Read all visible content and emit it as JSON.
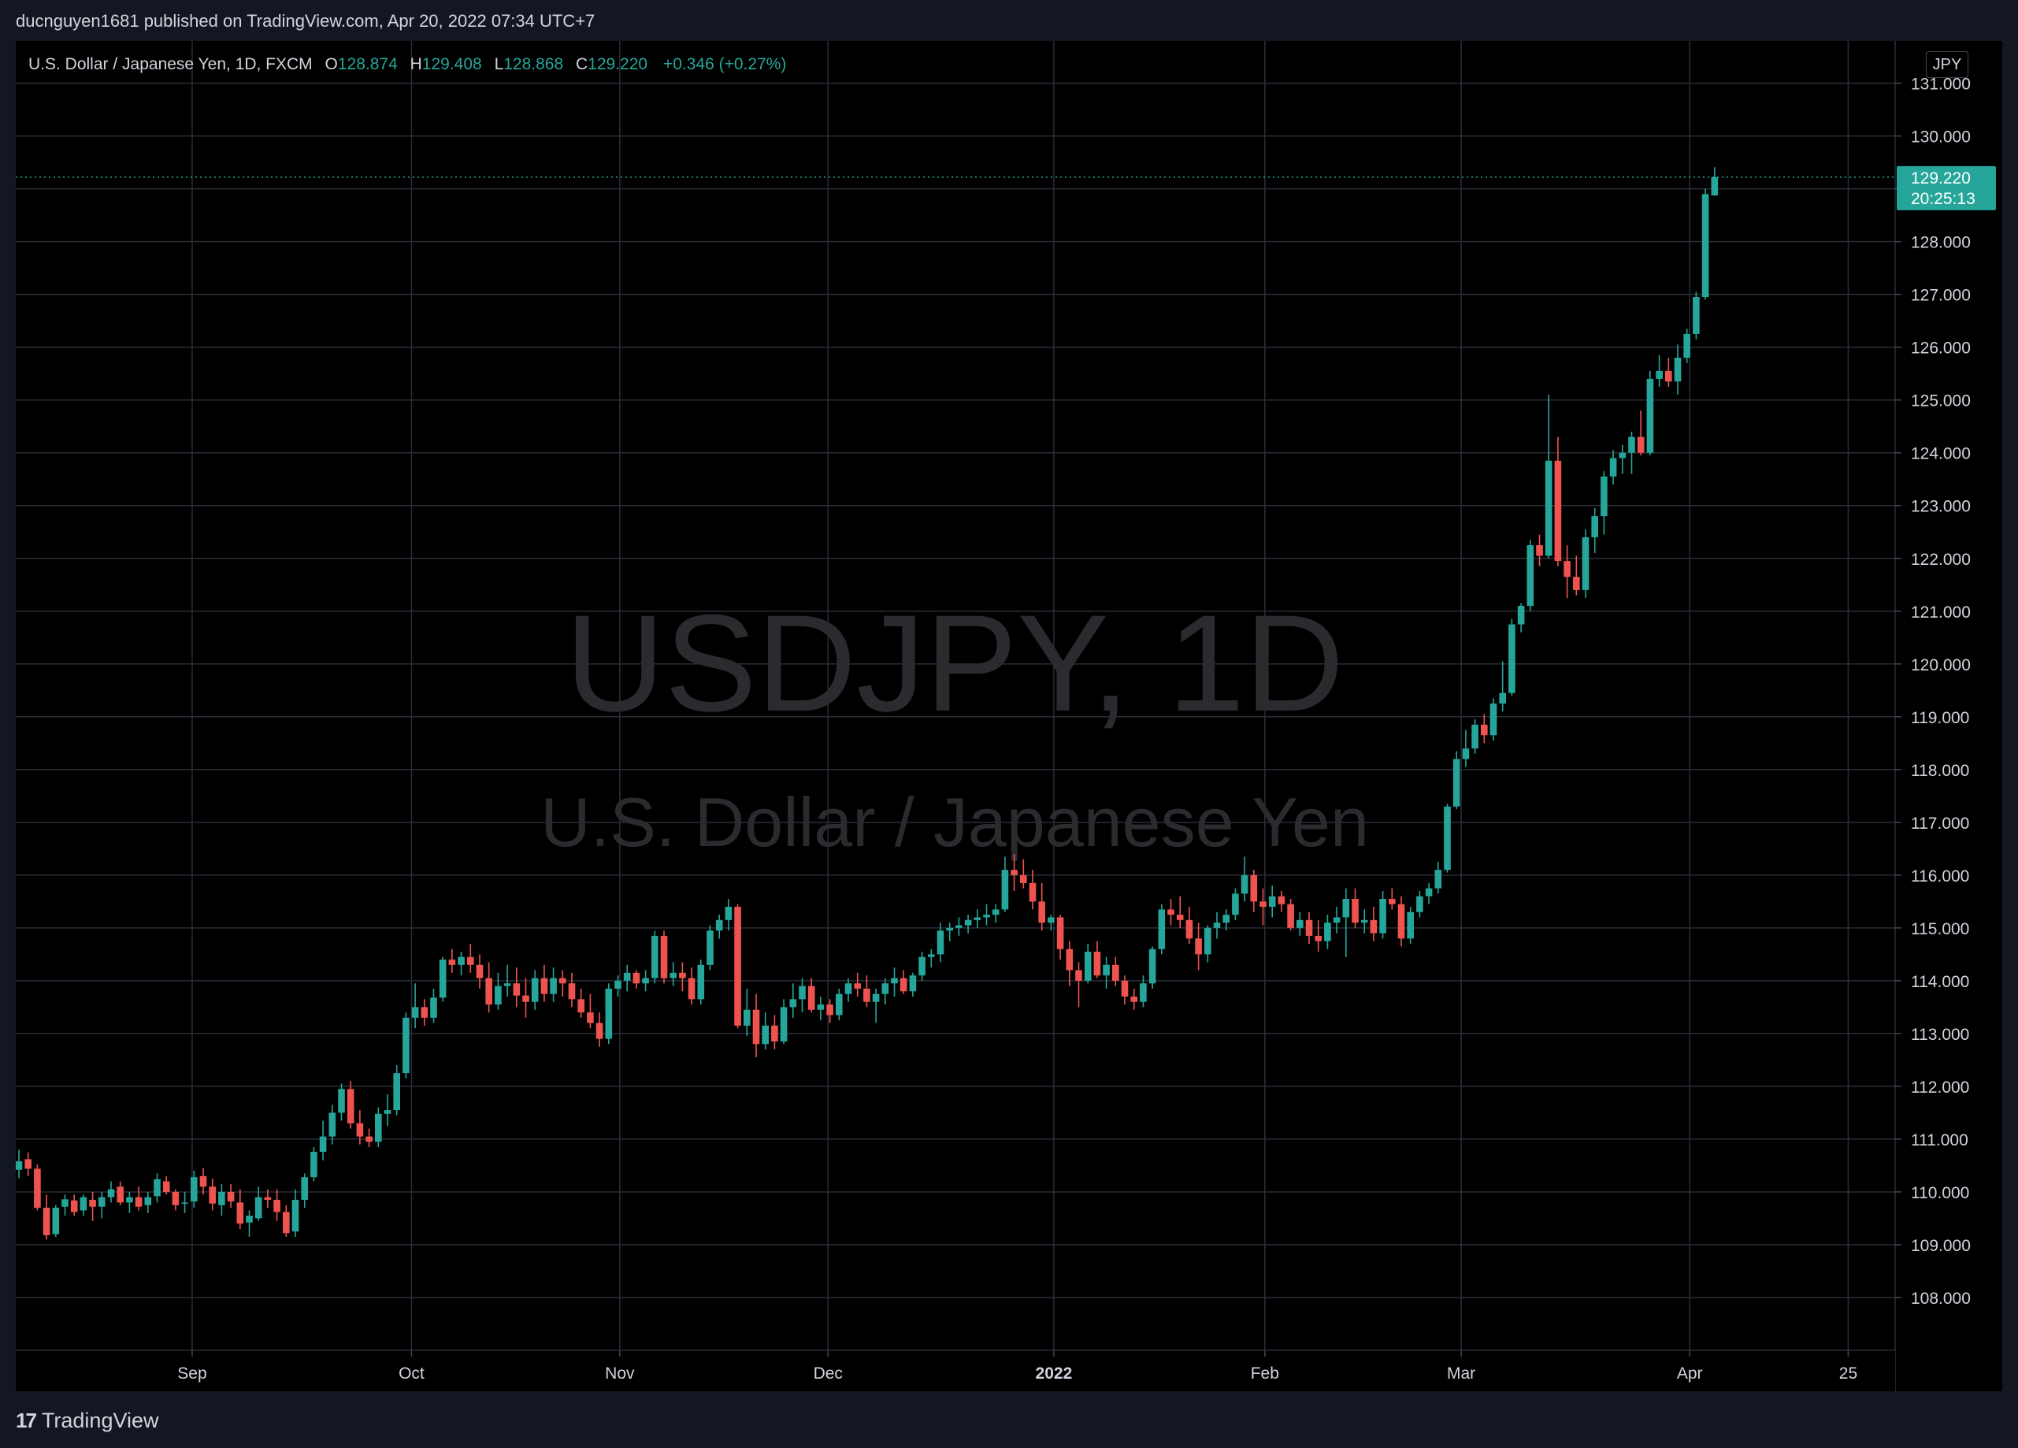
{
  "header": {
    "published_text": "ducnguyen1681 published on TradingView.com, Apr 20, 2022 07:34 UTC+7"
  },
  "legend": {
    "symbol_desc": "U.S. Dollar / Japanese Yen, 1D, FXCM",
    "o_label": "O",
    "o_value": "128.874",
    "h_label": "H",
    "h_value": "129.408",
    "l_label": "L",
    "l_value": "128.868",
    "c_label": "C",
    "c_value": "129.220",
    "change": "+0.346 (+0.27%)"
  },
  "currency_button": "JPY",
  "watermark": {
    "title": "USDJPY, 1D",
    "subtitle": "U.S. Dollar / Japanese Yen"
  },
  "price_label": {
    "price": "129.220",
    "countdown": "20:25:13"
  },
  "footer": {
    "brand": "TradingView"
  },
  "colors": {
    "up": "#26a69a",
    "down": "#ef5350",
    "grid": "#2a2e39",
    "background": "#000000",
    "axis_text": "#d1d4dc"
  },
  "chart_data": {
    "type": "candlestick",
    "symbol": "USDJPY",
    "interval": "1D",
    "ylim": [
      107.0,
      131.8
    ],
    "y_ticks": [
      "108.000",
      "109.000",
      "110.000",
      "111.000",
      "112.000",
      "113.000",
      "114.000",
      "115.000",
      "116.000",
      "117.000",
      "118.000",
      "119.000",
      "120.000",
      "121.000",
      "122.000",
      "123.000",
      "124.000",
      "125.000",
      "126.000",
      "127.000",
      "128.000",
      "129.000",
      "130.000",
      "131.000"
    ],
    "x_labels": [
      {
        "label": "Sep",
        "index": 18.8
      },
      {
        "label": "Oct",
        "index": 42.6
      },
      {
        "label": "Nov",
        "index": 65.2
      },
      {
        "label": "Dec",
        "index": 87.8
      },
      {
        "label": "2022",
        "index": 112.3,
        "bold": true
      },
      {
        "label": "Feb",
        "index": 135.2
      },
      {
        "label": "Mar",
        "index": 156.5
      },
      {
        "label": "Apr",
        "index": 181.3
      },
      {
        "label": "25",
        "index": 198.5
      }
    ],
    "last_close": 129.22,
    "ohlc": [
      [
        110.42,
        110.8,
        110.26,
        110.58
      ],
      [
        110.62,
        110.75,
        110.3,
        110.44
      ],
      [
        110.44,
        110.52,
        109.65,
        109.7
      ],
      [
        109.7,
        109.95,
        109.1,
        109.18
      ],
      [
        109.2,
        109.75,
        109.15,
        109.7
      ],
      [
        109.72,
        109.95,
        109.55,
        109.86
      ],
      [
        109.84,
        109.95,
        109.55,
        109.62
      ],
      [
        109.65,
        109.95,
        109.55,
        109.9
      ],
      [
        109.85,
        110.0,
        109.45,
        109.72
      ],
      [
        109.72,
        110.0,
        109.5,
        109.9
      ],
      [
        109.9,
        110.2,
        109.8,
        110.05
      ],
      [
        110.1,
        110.2,
        109.75,
        109.8
      ],
      [
        109.8,
        110.0,
        109.6,
        109.9
      ],
      [
        109.9,
        110.1,
        109.65,
        109.72
      ],
      [
        109.75,
        110.0,
        109.6,
        109.9
      ],
      [
        109.92,
        110.35,
        109.8,
        110.24
      ],
      [
        110.2,
        110.3,
        109.95,
        110.0
      ],
      [
        110.0,
        110.05,
        109.65,
        109.75
      ],
      [
        109.78,
        110.0,
        109.6,
        109.8
      ],
      [
        109.82,
        110.4,
        109.7,
        110.28
      ],
      [
        110.3,
        110.45,
        109.95,
        110.1
      ],
      [
        110.1,
        110.25,
        109.65,
        109.78
      ],
      [
        109.75,
        110.15,
        109.55,
        110.0
      ],
      [
        110.0,
        110.15,
        109.7,
        109.82
      ],
      [
        109.8,
        110.05,
        109.3,
        109.4
      ],
      [
        109.42,
        109.65,
        109.15,
        109.55
      ],
      [
        109.5,
        110.1,
        109.45,
        109.9
      ],
      [
        109.9,
        110.05,
        109.7,
        109.85
      ],
      [
        109.85,
        110.05,
        109.45,
        109.62
      ],
      [
        109.62,
        109.75,
        109.15,
        109.22
      ],
      [
        109.25,
        110.05,
        109.15,
        109.85
      ],
      [
        109.85,
        110.35,
        109.7,
        110.28
      ],
      [
        110.28,
        110.85,
        110.2,
        110.76
      ],
      [
        110.76,
        111.35,
        110.6,
        111.05
      ],
      [
        111.05,
        111.65,
        110.9,
        111.5
      ],
      [
        111.5,
        112.05,
        111.35,
        111.95
      ],
      [
        111.95,
        112.1,
        111.2,
        111.3
      ],
      [
        111.3,
        111.55,
        110.9,
        111.05
      ],
      [
        111.05,
        111.2,
        110.85,
        110.95
      ],
      [
        110.95,
        111.6,
        110.85,
        111.48
      ],
      [
        111.48,
        111.85,
        111.25,
        111.55
      ],
      [
        111.55,
        112.4,
        111.45,
        112.25
      ],
      [
        112.25,
        113.4,
        112.15,
        113.3
      ],
      [
        113.3,
        113.95,
        113.1,
        113.5
      ],
      [
        113.5,
        113.65,
        113.15,
        113.3
      ],
      [
        113.3,
        113.85,
        113.2,
        113.68
      ],
      [
        113.68,
        114.45,
        113.6,
        114.4
      ],
      [
        114.4,
        114.6,
        114.15,
        114.3
      ],
      [
        114.3,
        114.55,
        114.1,
        114.45
      ],
      [
        114.45,
        114.7,
        114.15,
        114.3
      ],
      [
        114.3,
        114.5,
        113.85,
        114.05
      ],
      [
        114.05,
        114.35,
        113.4,
        113.55
      ],
      [
        113.55,
        114.15,
        113.45,
        113.9
      ],
      [
        113.9,
        114.3,
        113.7,
        113.95
      ],
      [
        113.95,
        114.25,
        113.5,
        113.72
      ],
      [
        113.72,
        114.05,
        113.3,
        113.6
      ],
      [
        113.6,
        114.2,
        113.45,
        114.05
      ],
      [
        114.05,
        114.3,
        113.6,
        113.75
      ],
      [
        113.75,
        114.25,
        113.6,
        114.05
      ],
      [
        114.05,
        114.2,
        113.7,
        113.95
      ],
      [
        113.95,
        114.15,
        113.5,
        113.65
      ],
      [
        113.65,
        113.85,
        113.3,
        113.4
      ],
      [
        113.4,
        113.75,
        113.1,
        113.2
      ],
      [
        113.2,
        113.4,
        112.75,
        112.9
      ],
      [
        112.9,
        113.95,
        112.8,
        113.85
      ],
      [
        113.85,
        114.1,
        113.7,
        114.0
      ],
      [
        114.0,
        114.3,
        113.8,
        114.15
      ],
      [
        114.15,
        114.2,
        113.85,
        113.95
      ],
      [
        113.95,
        114.2,
        113.8,
        114.05
      ],
      [
        114.05,
        114.95,
        113.95,
        114.85
      ],
      [
        114.85,
        114.95,
        113.95,
        114.05
      ],
      [
        114.05,
        114.35,
        113.9,
        114.15
      ],
      [
        114.15,
        114.35,
        113.8,
        114.05
      ],
      [
        114.05,
        114.25,
        113.55,
        113.65
      ],
      [
        113.65,
        114.4,
        113.55,
        114.3
      ],
      [
        114.3,
        115.05,
        114.2,
        114.95
      ],
      [
        114.95,
        115.25,
        114.8,
        115.15
      ],
      [
        115.15,
        115.55,
        114.95,
        115.4
      ],
      [
        115.4,
        115.45,
        113.1,
        113.15
      ],
      [
        113.15,
        113.85,
        112.95,
        113.45
      ],
      [
        113.45,
        113.75,
        112.55,
        112.8
      ],
      [
        112.8,
        113.4,
        112.7,
        113.15
      ],
      [
        113.15,
        113.35,
        112.7,
        112.85
      ],
      [
        112.85,
        113.65,
        112.8,
        113.5
      ],
      [
        113.5,
        113.95,
        113.3,
        113.65
      ],
      [
        113.65,
        114.05,
        113.4,
        113.9
      ],
      [
        113.9,
        114.05,
        113.4,
        113.45
      ],
      [
        113.45,
        113.7,
        113.25,
        113.55
      ],
      [
        113.55,
        113.65,
        113.2,
        113.35
      ],
      [
        113.35,
        113.85,
        113.25,
        113.75
      ],
      [
        113.75,
        114.05,
        113.6,
        113.95
      ],
      [
        113.95,
        114.15,
        113.7,
        113.85
      ],
      [
        113.85,
        114.1,
        113.5,
        113.6
      ],
      [
        113.6,
        113.85,
        113.2,
        113.75
      ],
      [
        113.75,
        114.05,
        113.55,
        113.95
      ],
      [
        113.95,
        114.25,
        113.7,
        114.05
      ],
      [
        114.05,
        114.2,
        113.75,
        113.8
      ],
      [
        113.8,
        114.15,
        113.7,
        114.1
      ],
      [
        114.1,
        114.55,
        114.0,
        114.45
      ],
      [
        114.45,
        114.6,
        114.25,
        114.5
      ],
      [
        114.5,
        115.1,
        114.35,
        114.95
      ],
      [
        114.95,
        115.1,
        114.75,
        115.0
      ],
      [
        115.0,
        115.2,
        114.85,
        115.05
      ],
      [
        115.05,
        115.25,
        114.9,
        115.15
      ],
      [
        115.15,
        115.35,
        115.0,
        115.2
      ],
      [
        115.2,
        115.45,
        115.05,
        115.25
      ],
      [
        115.25,
        115.45,
        115.1,
        115.35
      ],
      [
        115.35,
        116.35,
        115.3,
        116.1
      ],
      [
        116.1,
        116.4,
        115.7,
        116.0
      ],
      [
        116.0,
        116.3,
        115.75,
        115.85
      ],
      [
        115.85,
        116.1,
        115.35,
        115.5
      ],
      [
        115.5,
        115.85,
        114.95,
        115.1
      ],
      [
        115.1,
        115.25,
        114.95,
        115.2
      ],
      [
        115.2,
        115.25,
        114.4,
        114.6
      ],
      [
        114.6,
        114.75,
        113.9,
        114.2
      ],
      [
        114.2,
        114.35,
        113.5,
        114.0
      ],
      [
        114.0,
        114.7,
        113.95,
        114.55
      ],
      [
        114.55,
        114.75,
        114.05,
        114.1
      ],
      [
        114.1,
        114.45,
        113.85,
        114.3
      ],
      [
        114.3,
        114.45,
        113.9,
        114.0
      ],
      [
        114.0,
        114.1,
        113.55,
        113.7
      ],
      [
        113.7,
        113.85,
        113.45,
        113.6
      ],
      [
        113.6,
        114.1,
        113.5,
        113.95
      ],
      [
        113.95,
        114.65,
        113.85,
        114.6
      ],
      [
        114.6,
        115.45,
        114.5,
        115.35
      ],
      [
        115.35,
        115.55,
        115.05,
        115.25
      ],
      [
        115.25,
        115.6,
        115.0,
        115.15
      ],
      [
        115.15,
        115.4,
        114.7,
        114.8
      ],
      [
        114.8,
        115.1,
        114.2,
        114.5
      ],
      [
        114.5,
        115.05,
        114.35,
        115.0
      ],
      [
        115.0,
        115.3,
        114.8,
        115.1
      ],
      [
        115.1,
        115.35,
        114.95,
        115.25
      ],
      [
        115.25,
        115.75,
        115.15,
        115.65
      ],
      [
        115.65,
        116.35,
        115.5,
        116.0
      ],
      [
        116.0,
        116.1,
        115.3,
        115.5
      ],
      [
        115.5,
        115.75,
        115.05,
        115.4
      ],
      [
        115.4,
        115.8,
        115.2,
        115.6
      ],
      [
        115.6,
        115.7,
        115.3,
        115.45
      ],
      [
        115.45,
        115.55,
        114.95,
        115.0
      ],
      [
        115.0,
        115.3,
        114.85,
        115.15
      ],
      [
        115.15,
        115.3,
        114.7,
        114.85
      ],
      [
        114.85,
        115.15,
        114.55,
        114.75
      ],
      [
        114.75,
        115.25,
        114.6,
        115.1
      ],
      [
        115.1,
        115.4,
        114.9,
        115.2
      ],
      [
        115.2,
        115.75,
        114.45,
        115.55
      ],
      [
        115.55,
        115.75,
        115.0,
        115.1
      ],
      [
        115.1,
        115.35,
        114.9,
        115.15
      ],
      [
        115.15,
        115.4,
        114.75,
        114.9
      ],
      [
        114.9,
        115.7,
        114.8,
        115.55
      ],
      [
        115.55,
        115.75,
        115.35,
        115.45
      ],
      [
        115.45,
        115.6,
        114.65,
        114.8
      ],
      [
        114.8,
        115.4,
        114.7,
        115.3
      ],
      [
        115.3,
        115.7,
        115.2,
        115.6
      ],
      [
        115.6,
        115.85,
        115.45,
        115.75
      ],
      [
        115.75,
        116.25,
        115.65,
        116.1
      ],
      [
        116.1,
        117.35,
        116.05,
        117.3
      ],
      [
        117.3,
        118.35,
        117.25,
        118.2
      ],
      [
        118.2,
        118.75,
        118.05,
        118.4
      ],
      [
        118.4,
        118.95,
        118.3,
        118.85
      ],
      [
        118.85,
        119.05,
        118.5,
        118.65
      ],
      [
        118.65,
        119.35,
        118.55,
        119.25
      ],
      [
        119.25,
        120.05,
        119.1,
        119.45
      ],
      [
        119.45,
        120.85,
        119.4,
        120.75
      ],
      [
        120.75,
        121.15,
        120.6,
        121.1
      ],
      [
        121.1,
        122.35,
        121.0,
        122.25
      ],
      [
        122.25,
        122.45,
        121.85,
        122.05
      ],
      [
        122.05,
        125.1,
        122.0,
        123.85
      ],
      [
        123.85,
        124.3,
        121.85,
        121.95
      ],
      [
        121.95,
        122.25,
        121.25,
        121.65
      ],
      [
        121.65,
        122.05,
        121.3,
        121.4
      ],
      [
        121.4,
        122.55,
        121.25,
        122.4
      ],
      [
        122.4,
        122.95,
        122.1,
        122.8
      ],
      [
        122.8,
        123.65,
        122.45,
        123.55
      ],
      [
        123.55,
        124.05,
        123.4,
        123.9
      ],
      [
        123.9,
        124.15,
        123.6,
        124.0
      ],
      [
        124.0,
        124.4,
        123.6,
        124.3
      ],
      [
        124.3,
        124.8,
        123.95,
        124.0
      ],
      [
        124.0,
        125.55,
        123.95,
        125.4
      ],
      [
        125.4,
        125.85,
        125.25,
        125.55
      ],
      [
        125.55,
        125.8,
        125.25,
        125.35
      ],
      [
        125.35,
        126.05,
        125.1,
        125.8
      ],
      [
        125.8,
        126.35,
        125.7,
        126.25
      ],
      [
        126.25,
        127.05,
        126.15,
        126.95
      ],
      [
        126.95,
        129.0,
        126.9,
        128.9
      ],
      [
        128.874,
        129.408,
        128.868,
        129.22
      ]
    ]
  }
}
